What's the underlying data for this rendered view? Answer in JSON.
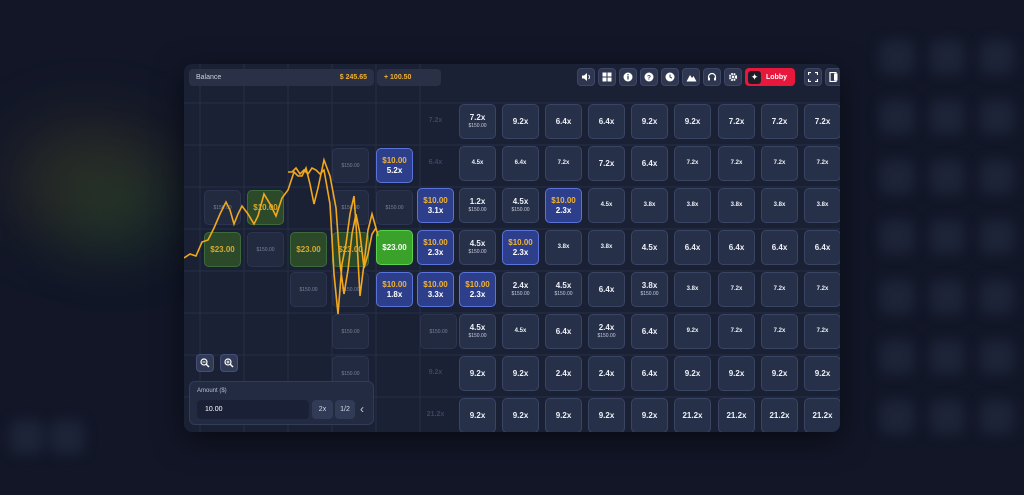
{
  "header": {
    "balance_label": "Balance",
    "balance_value": "$ 245.65",
    "delta_value": "+ 100.50",
    "lobby_label": "Lobby"
  },
  "toolbar_icons": [
    "volume-icon",
    "apps-icon",
    "info-icon",
    "help-icon",
    "history-icon",
    "chart-mountain-icon",
    "headset-icon",
    "gear-icon"
  ],
  "window_icons": [
    "fullscreen-icon",
    "exit-icon"
  ],
  "colors": {
    "accent_orange": "#f2b233",
    "lobby_red": "#e8183c",
    "win_green": "#3aa12b",
    "bet_blue": "#2d3f8a"
  },
  "grid": {
    "rows": [
      [
        "7.2x",
        "7.2x",
        "9.2x",
        "6.4x",
        "6.4x",
        "9.2x",
        "9.2x",
        "7.2x",
        "7.2x",
        "7.2x"
      ],
      [
        "6.4x",
        "4.5x",
        "6.4x",
        "7.2x",
        "7.2x",
        "6.4x",
        "7.2x",
        "7.2x",
        "7.2x",
        "7.2x"
      ],
      [
        "3.1x",
        "1.2x",
        "4.5x",
        "2.3x",
        "4.5x",
        "3.8x",
        "3.8x",
        "3.8x",
        "3.8x",
        "3.8x"
      ],
      [
        "2.3x",
        "4.5x",
        "2.3x",
        "3.8x",
        "3.8x",
        "4.5x",
        "6.4x",
        "6.4x",
        "6.4x",
        "6.4x"
      ],
      [
        "3.3x",
        "2.3x",
        "2.4x",
        "4.5x",
        "6.4x",
        "3.8x",
        "3.8x",
        "7.2x",
        "7.2x",
        "7.2x"
      ],
      [
        "",
        "4.5x",
        "4.5x",
        "6.4x",
        "2.4x",
        "6.4x",
        "9.2x",
        "7.2x",
        "7.2x",
        "7.2x"
      ],
      [
        "9.2x",
        "9.2x",
        "9.2x",
        "2.4x",
        "2.4x",
        "6.4x",
        "9.2x",
        "9.2x",
        "9.2x",
        "9.2x"
      ],
      [
        "21.2x",
        "9.2x",
        "9.2x",
        "9.2x",
        "9.2x",
        "9.2x",
        "21.2x",
        "21.2x",
        "21.2x",
        "21.2x"
      ]
    ],
    "stakes": {
      "0-1": "$150.00",
      "2-1": "$150.00",
      "2-2": "$150.00",
      "3-1": "$150.00",
      "4-2": "$150.00",
      "4-3": "$150.00",
      "4-5": "$150.00",
      "5-1": "$150.00",
      "5-4": "$150.00"
    }
  },
  "bets": [
    {
      "amount": "$10.00",
      "mult": "5.2x"
    },
    {
      "amount": "$10.00",
      "mult": "3.1x"
    },
    {
      "amount": "$10.00",
      "mult": "2.3x"
    },
    {
      "amount": "$10.00",
      "mult": "1.8x"
    },
    {
      "amount": "$10.00",
      "mult": "2.3x"
    },
    {
      "amount": "$10.00",
      "mult": "2.3x"
    },
    {
      "amount": "$10.00",
      "mult": "3.3x"
    },
    {
      "amount": "$10.00",
      "mult": "2.3x"
    }
  ],
  "past": {
    "ghost_stake": "$150.00",
    "win_amount": "$23.00",
    "ghost_win_amount": "$23.00",
    "ghost_bet_amount": "$10.00"
  },
  "amount": {
    "label": "Amount ($)",
    "value": "10.00",
    "double_label": "2x",
    "half_label": "1/2"
  }
}
